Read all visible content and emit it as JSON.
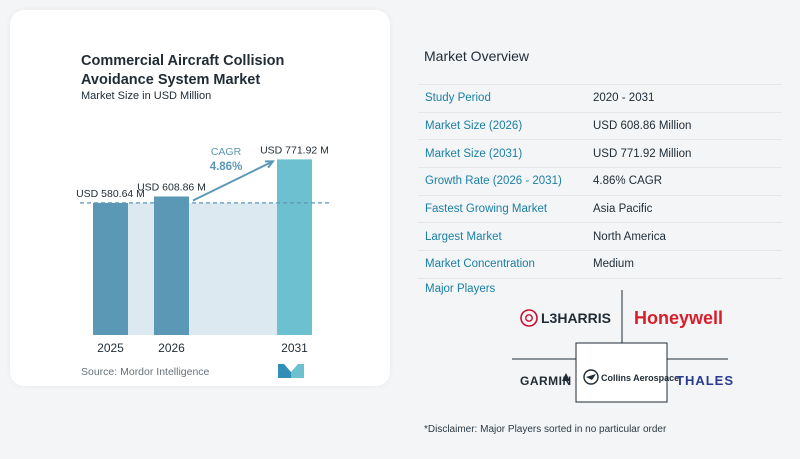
{
  "title": "Commercial Aircraft Collision Avoidance System Market",
  "subtitle": "Market Size in USD Million",
  "source": "Source:  Mordor Intelligence",
  "chart_data": {
    "type": "bar",
    "categories": [
      "2025",
      "2026",
      "2031"
    ],
    "values": [
      580.64,
      608.86,
      771.92
    ],
    "value_labels": [
      "USD 580.64 M",
      "USD 608.86 M",
      "USD 771.92 M"
    ],
    "cagr_label": "CAGR",
    "cagr_value": "4.86%",
    "reference_line_value": 580.64,
    "ylim": [
      0,
      800
    ],
    "colors": {
      "bar": "#5b98b6",
      "bar_last": "#6cc0d0",
      "shade": "#dde9f1",
      "arrow": "#5b98b6",
      "cagr": "#5b98b6"
    }
  },
  "overview": {
    "title": "Market Overview",
    "rows": [
      {
        "label": "Study Period",
        "value": "2020 - 2031"
      },
      {
        "label": "Market Size (2026)",
        "value": "USD 608.86 Million"
      },
      {
        "label": "Market Size (2031)",
        "value": "USD 771.92 Million"
      },
      {
        "label": "Growth Rate (2026 - 2031)",
        "value": "4.86% CAGR"
      },
      {
        "label": "Fastest Growing Market",
        "value": "Asia Pacific"
      },
      {
        "label": "Largest Market",
        "value": "North America"
      },
      {
        "label": "Market Concentration",
        "value": "Medium"
      }
    ]
  },
  "major_players": {
    "title": "Major Players",
    "logos": [
      "L3HARRIS",
      "Honeywell",
      "GARMIN",
      "Collins Aerospace",
      "THALES"
    ]
  },
  "disclaimer": "*Disclaimer: Major Players sorted in no particular order"
}
